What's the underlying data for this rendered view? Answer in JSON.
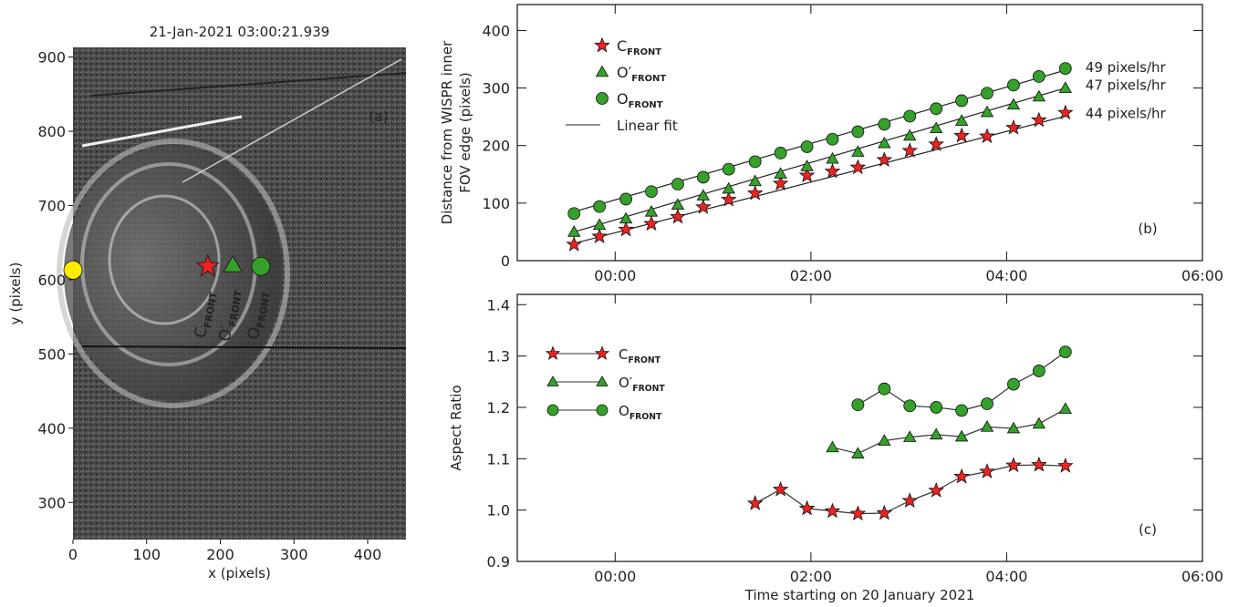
{
  "chart_data": [
    {
      "type": "image",
      "title": "21-Jan-2021 03:00:21.939",
      "xlabel": "x (pixels)",
      "ylabel": "y (pixels)",
      "panel_label": "(a)",
      "xlim": [
        0,
        452
      ],
      "ylim": [
        250,
        913
      ],
      "xticks": [
        0,
        100,
        200,
        300,
        400
      ],
      "yticks": [
        300,
        400,
        500,
        600,
        700,
        800,
        900
      ],
      "series": [
        {
          "shape": "circle",
          "color": "#ffee00",
          "x": [
            0
          ],
          "values": [
            613
          ]
        },
        {
          "name": "C",
          "subscript": "FRONT",
          "shape": "star",
          "color": "#ee2222",
          "x": [
            183
          ],
          "values": [
            618
          ]
        },
        {
          "name": "O′",
          "subscript": "FRONT",
          "shape": "triangle",
          "color": "#35a02a",
          "x": [
            217
          ],
          "values": [
            620
          ]
        },
        {
          "name": "O",
          "subscript": "FRONT",
          "shape": "circle",
          "color": "#35a02a",
          "x": [
            255
          ],
          "values": [
            618
          ]
        }
      ]
    },
    {
      "type": "scatter",
      "panel_label": "(b)",
      "ylabel": [
        "Distance from WISPR inner",
        "FOV edge (pixels)"
      ],
      "fit_label": "Linear fit",
      "xlim": [
        -1,
        6
      ],
      "ylim": [
        0,
        445
      ],
      "xticks": [
        {
          "value": 0,
          "label": "00:00"
        },
        {
          "value": 2,
          "label": "02:00"
        },
        {
          "value": 4,
          "label": "04:00"
        },
        {
          "value": 6,
          "label": "06:00"
        }
      ],
      "yticks": [
        0,
        100,
        200,
        300,
        400
      ],
      "x": [
        -0.42,
        -0.16,
        0.11,
        0.37,
        0.64,
        0.9,
        1.16,
        1.43,
        1.69,
        1.96,
        2.22,
        2.48,
        2.75,
        3.01,
        3.28,
        3.54,
        3.8,
        4.07,
        4.33,
        4.6
      ],
      "fit_x": [
        -0.42,
        4.6
      ],
      "series": [
        {
          "name": "C",
          "subscript": "FRONT",
          "shape": "star",
          "color": "#ee2222",
          "rate_label": "44 pixels/hr",
          "values": [
            28,
            42,
            54,
            64,
            76,
            93,
            106,
            117,
            134,
            148,
            155,
            162,
            175,
            191,
            202,
            217,
            216,
            231,
            244,
            257
          ],
          "fit": [
            30,
            251
          ]
        },
        {
          "name": "O′",
          "subscript": "FRONT",
          "shape": "triangle",
          "color": "#35a02a",
          "rate_label": "47 pixels/hr",
          "values": [
            50,
            62,
            73,
            85,
            97,
            113,
            125,
            138,
            151,
            164,
            177,
            189,
            204,
            217,
            230,
            243,
            258,
            271,
            285,
            300
          ],
          "fit": [
            50,
            300
          ]
        },
        {
          "name": "O",
          "subscript": "FRONT",
          "shape": "circle",
          "color": "#35a02a",
          "rate_label": "49 pixels/hr",
          "values": [
            82,
            94,
            107,
            120,
            133,
            145,
            159,
            172,
            187,
            198,
            211,
            224,
            237,
            251,
            264,
            278,
            291,
            305,
            320,
            334
          ],
          "fit": [
            85,
            331
          ]
        }
      ]
    },
    {
      "type": "line",
      "panel_label": "(c)",
      "xlabel": "Time starting on 20 January 2021",
      "ylabel": "Aspect Ratio",
      "xlim": [
        -1,
        6
      ],
      "ylim": [
        0.9,
        1.42
      ],
      "xticks": [
        {
          "value": 0,
          "label": "00:00"
        },
        {
          "value": 2,
          "label": "02:00"
        },
        {
          "value": 4,
          "label": "04:00"
        },
        {
          "value": 6,
          "label": "06:00"
        }
      ],
      "yticks": [
        0.9,
        {
          "value": 1.0,
          "label": "1.0"
        },
        1.1,
        1.2,
        1.3,
        1.4
      ],
      "x": [
        1.43,
        1.69,
        1.96,
        2.22,
        2.48,
        2.75,
        3.01,
        3.28,
        3.54,
        3.8,
        4.07,
        4.33,
        4.6
      ],
      "series": [
        {
          "name": "C",
          "subscript": "FRONT",
          "shape": "star",
          "color": "#ee2222",
          "values": [
            1.013,
            1.04,
            1.003,
            0.998,
            0.993,
            0.994,
            1.018,
            1.038,
            1.065,
            1.075,
            1.087,
            1.088,
            1.086
          ]
        },
        {
          "name": "O′",
          "subscript": "FRONT",
          "shape": "triangle",
          "color": "#35a02a",
          "values": [
            null,
            null,
            null,
            1.122,
            1.11,
            1.135,
            1.142,
            1.147,
            1.143,
            1.162,
            1.159,
            1.168,
            1.197
          ]
        },
        {
          "name": "O",
          "subscript": "FRONT",
          "shape": "circle",
          "color": "#35a02a",
          "values": [
            null,
            null,
            null,
            null,
            1.205,
            1.236,
            1.203,
            1.2,
            1.194,
            1.207,
            1.245,
            1.271,
            1.308
          ]
        }
      ]
    }
  ]
}
